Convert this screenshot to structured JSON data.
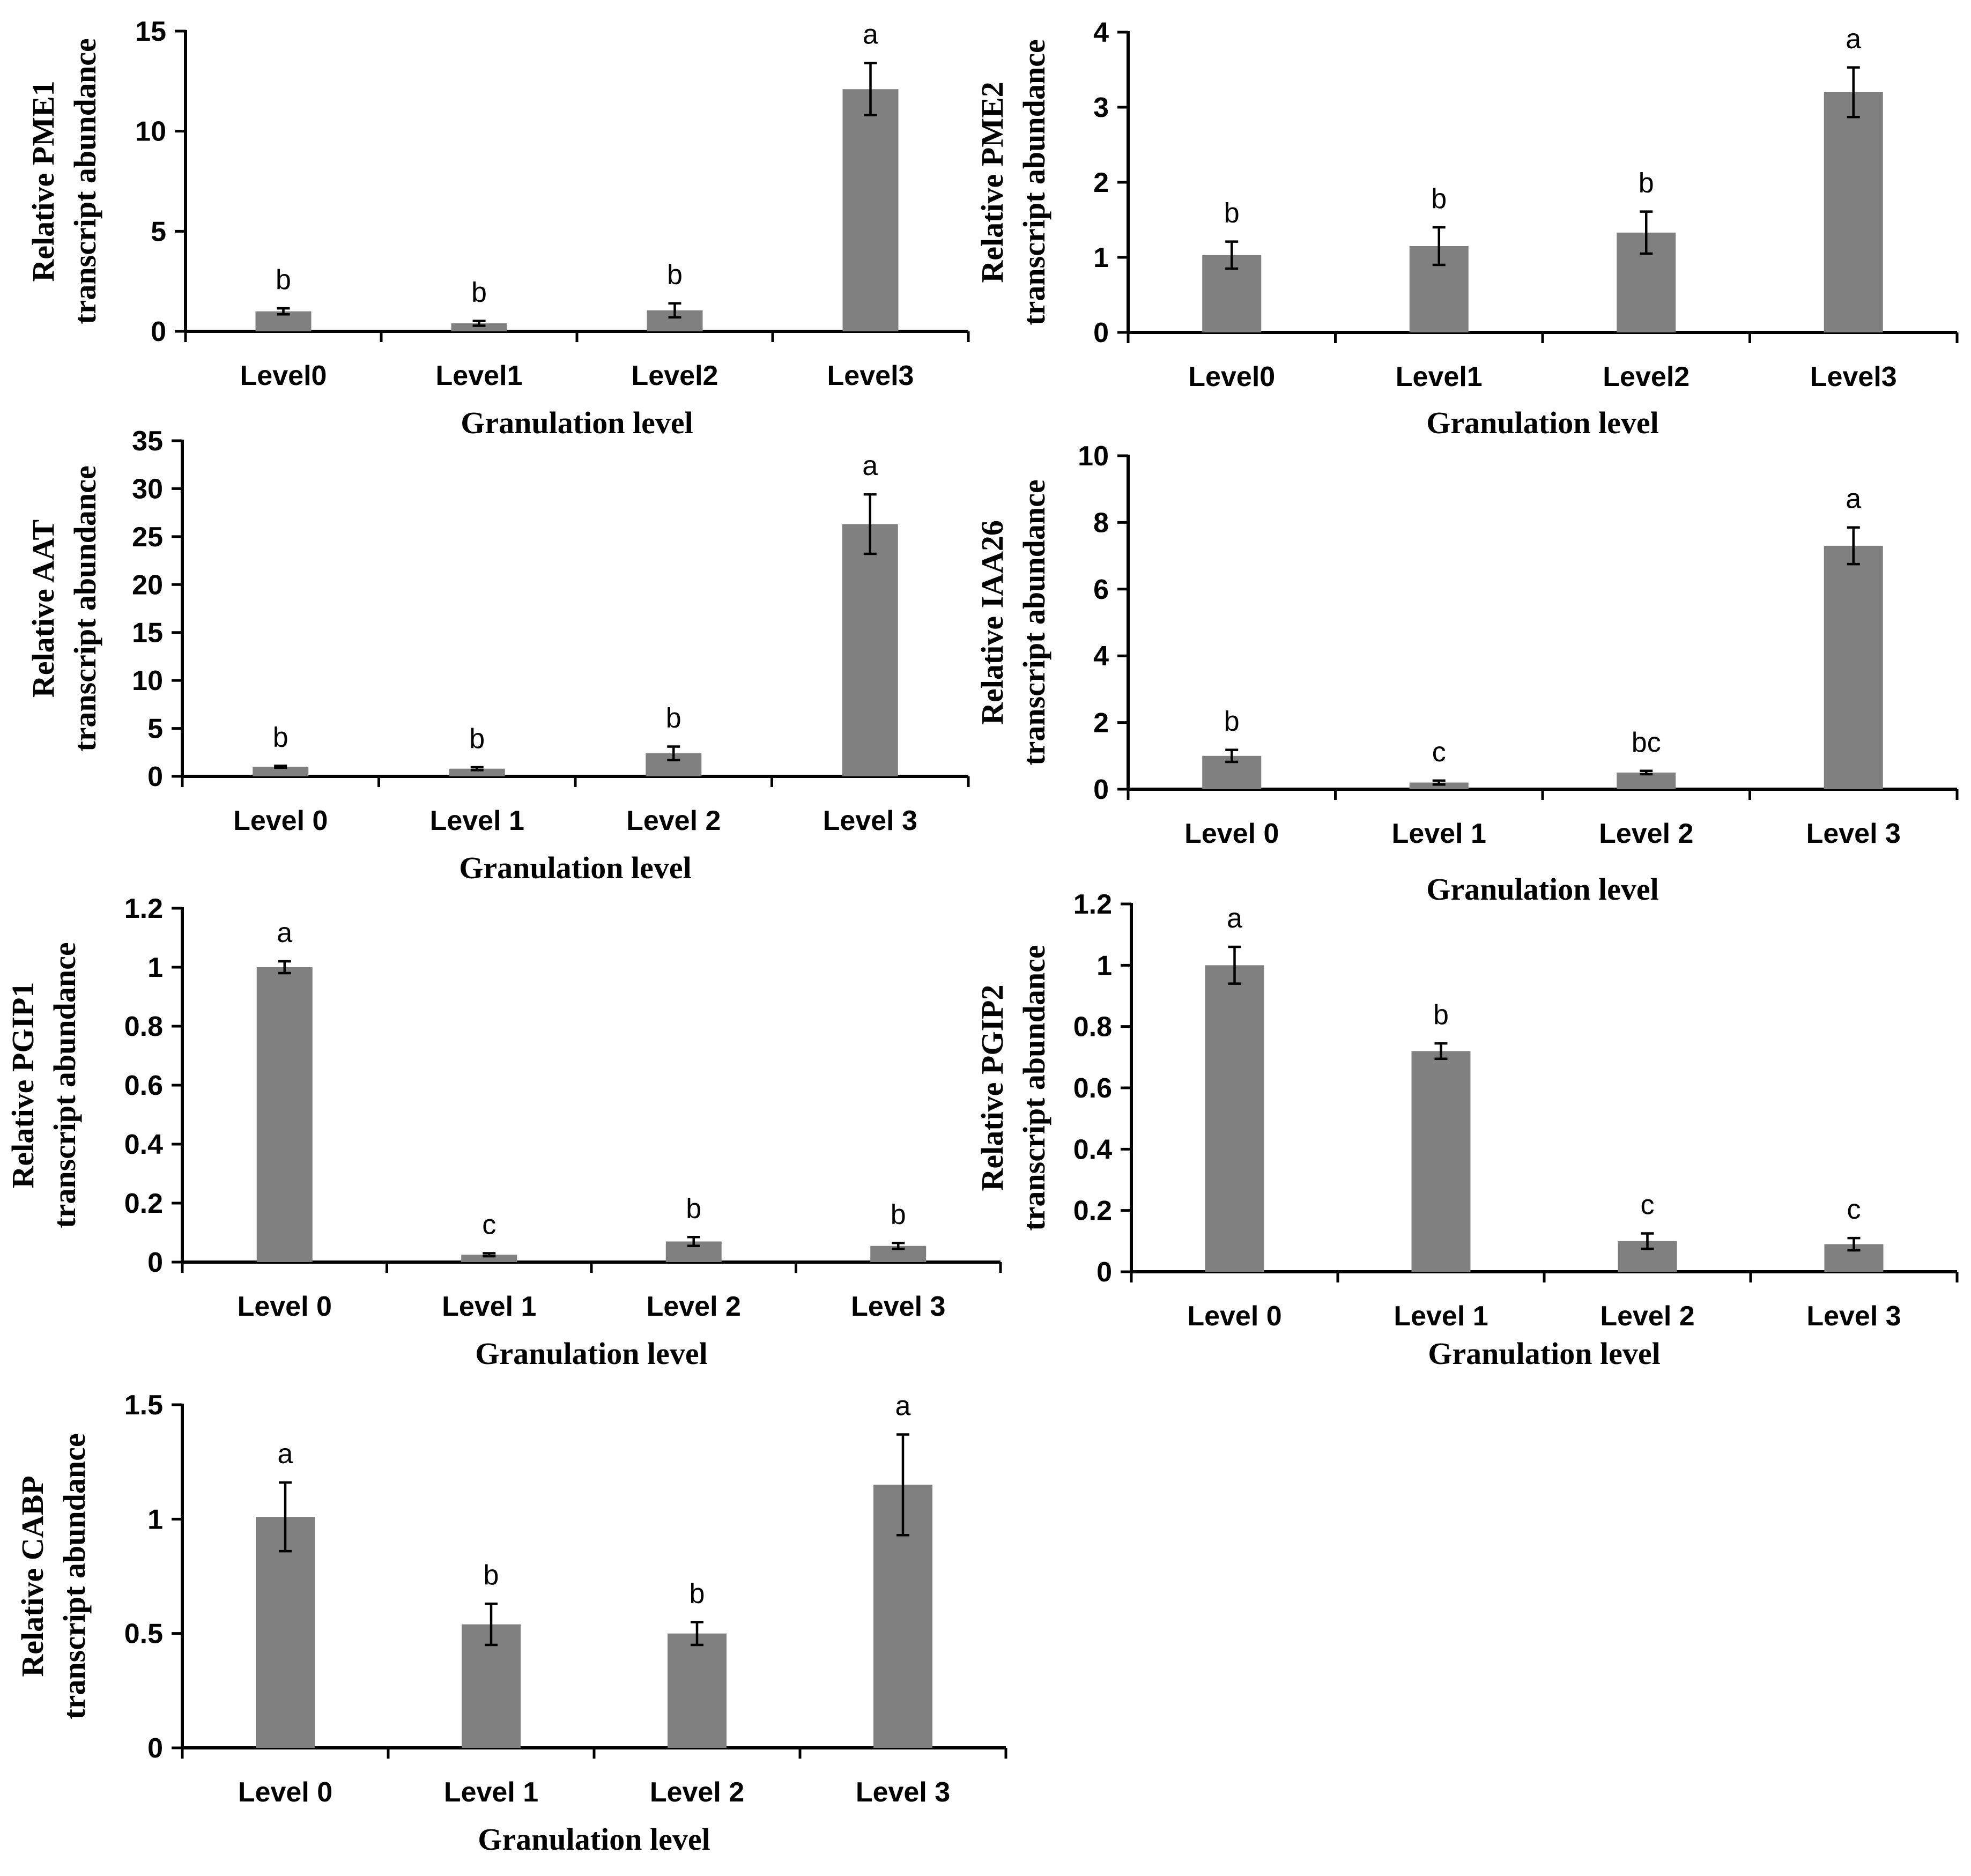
{
  "chart_data": [
    {
      "id": "pme1",
      "type": "bar",
      "categories": [
        "Level0",
        "Level1",
        "Level2",
        "Level3"
      ],
      "values": [
        1.0,
        0.4,
        1.05,
        12.1
      ],
      "errors": [
        0.15,
        0.12,
        0.35,
        1.3
      ],
      "significance": [
        "b",
        "b",
        "b",
        "a"
      ],
      "ylim": [
        0,
        15
      ],
      "yticks": [
        "0",
        "5",
        "10",
        "15"
      ],
      "ylabel_lines": [
        "Relative PME1",
        "transcript abundance"
      ],
      "xlabel": "Granulation level"
    },
    {
      "id": "pme2",
      "type": "bar",
      "categories": [
        "Level0",
        "Level1",
        "Level2",
        "Level3"
      ],
      "values": [
        1.03,
        1.15,
        1.33,
        3.2
      ],
      "errors": [
        0.18,
        0.25,
        0.28,
        0.33
      ],
      "significance": [
        "b",
        "b",
        "b",
        "a"
      ],
      "ylim": [
        0,
        4
      ],
      "yticks": [
        "0",
        "1",
        "2",
        "3",
        "4"
      ],
      "ylabel_lines": [
        "Relative PME2",
        "transcript abundance"
      ],
      "xlabel": "Granulation level"
    },
    {
      "id": "aat",
      "type": "bar",
      "categories": [
        "Level 0",
        "Level 1",
        "Level 2",
        "Level 3"
      ],
      "values": [
        1.0,
        0.8,
        2.4,
        26.3
      ],
      "errors": [
        0.1,
        0.15,
        0.7,
        3.1
      ],
      "significance": [
        "b",
        "b",
        "b",
        "a"
      ],
      "ylim": [
        0,
        35
      ],
      "yticks": [
        "0",
        "5",
        "10",
        "15",
        "20",
        "25",
        "30",
        "35"
      ],
      "ylabel_lines": [
        "Relative AAT",
        "transcript abundance"
      ],
      "xlabel": "Granulation level"
    },
    {
      "id": "iaa26",
      "type": "bar",
      "categories": [
        "Level 0",
        "Level 1",
        "Level 2",
        "Level 3"
      ],
      "values": [
        1.0,
        0.2,
        0.5,
        7.3
      ],
      "errors": [
        0.18,
        0.06,
        0.05,
        0.55
      ],
      "significance": [
        "b",
        "c",
        "bc",
        "a"
      ],
      "ylim": [
        0,
        10
      ],
      "yticks": [
        "0",
        "2",
        "4",
        "6",
        "8",
        "10"
      ],
      "ylabel_lines": [
        "Relative IAA26",
        "transcript abundance"
      ],
      "xlabel": "Granulation level"
    },
    {
      "id": "pgip1",
      "type": "bar",
      "categories": [
        "Level 0",
        "Level 1",
        "Level 2",
        "Level 3"
      ],
      "values": [
        1.0,
        0.025,
        0.07,
        0.055
      ],
      "errors": [
        0.02,
        0.005,
        0.015,
        0.01
      ],
      "significance": [
        "a",
        "c",
        "b",
        "b"
      ],
      "ylim": [
        0,
        1.2
      ],
      "yticks": [
        "0",
        "0.2",
        "0.4",
        "0.6",
        "0.8",
        "1",
        "1.2"
      ],
      "ylabel_lines": [
        "Relative PGIP1",
        "transcript abundance"
      ],
      "xlabel": "Granulation level"
    },
    {
      "id": "pgip2",
      "type": "bar",
      "categories": [
        "Level 0",
        "Level 1",
        "Level 2",
        "Level 3"
      ],
      "values": [
        1.0,
        0.72,
        0.1,
        0.09
      ],
      "errors": [
        0.06,
        0.025,
        0.025,
        0.02
      ],
      "significance": [
        "a",
        "b",
        "c",
        "c"
      ],
      "ylim": [
        0,
        1.2
      ],
      "yticks": [
        "0",
        "0.2",
        "0.4",
        "0.6",
        "0.8",
        "1",
        "1.2"
      ],
      "ylabel_lines": [
        "Relative PGIP2",
        "transcript abundance"
      ],
      "xlabel": "Granulation level"
    },
    {
      "id": "cabp",
      "type": "bar",
      "categories": [
        "Level 0",
        "Level 1",
        "Level 2",
        "Level 3"
      ],
      "values": [
        1.01,
        0.54,
        0.5,
        1.15
      ],
      "errors": [
        0.15,
        0.09,
        0.05,
        0.22
      ],
      "significance": [
        "a",
        "b",
        "b",
        "a"
      ],
      "ylim": [
        0,
        1.5
      ],
      "yticks": [
        "0",
        "0.5",
        "1",
        "1.5"
      ],
      "ylabel_lines": [
        "Relative CABP",
        "transcript abundance"
      ],
      "xlabel": "Granulation level"
    }
  ]
}
